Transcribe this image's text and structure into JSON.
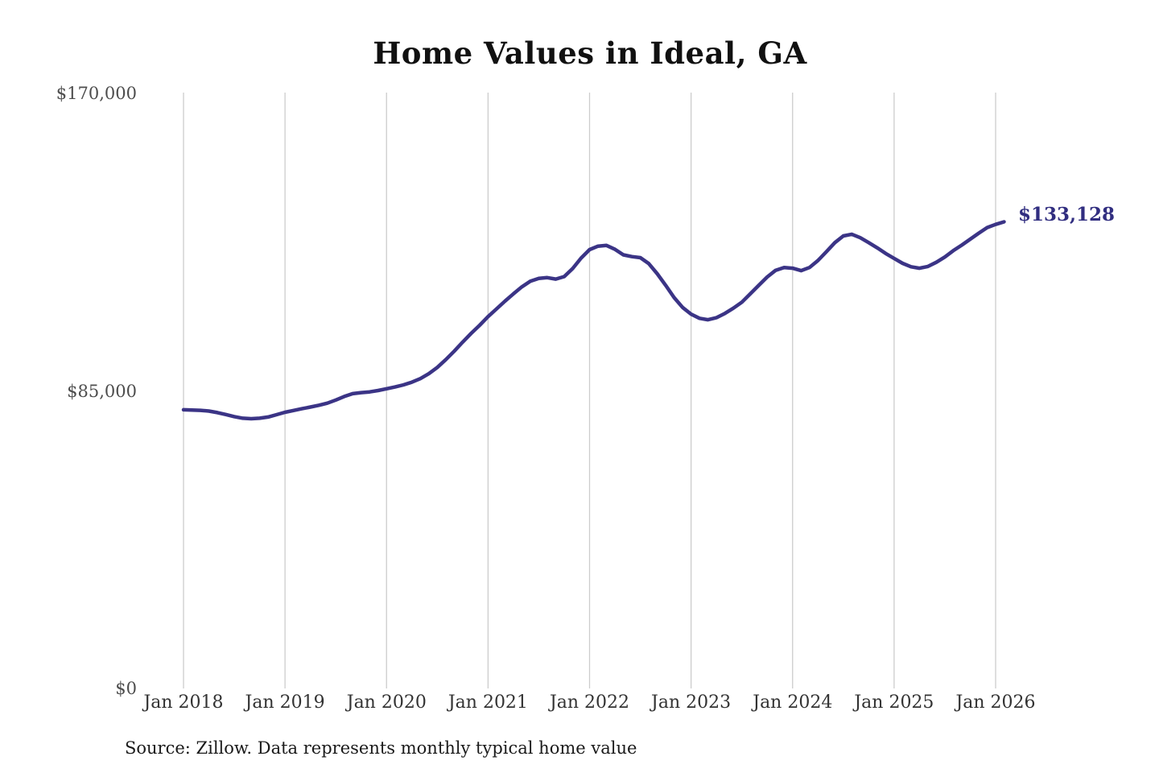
{
  "title": "Home Values in Ideal, GA",
  "annotation": {
    "latest_value_label": "$133,128"
  },
  "source_note": "Source: Zillow. Data represents monthly typical home value",
  "colors": {
    "line": "#3b3486",
    "annotation": "#312e80",
    "gridline": "#cccccc",
    "title": "#111111",
    "y_tick_label": "#4d4d4d",
    "x_tick_label": "#333333",
    "background": "#ffffff"
  },
  "chart_data": {
    "type": "line",
    "title": "Home Values in Ideal, GA",
    "xlabel": "",
    "ylabel": "",
    "y_axis_range": [
      0,
      170000
    ],
    "y_tick_labels": [
      "$170,000",
      "$85,000",
      "$0"
    ],
    "x_tick_labels": [
      "Jan 2018",
      "Jan 2019",
      "Jan 2020",
      "Jan 2021",
      "Jan 2022",
      "Jan 2023",
      "Jan 2024",
      "Jan 2025",
      "Jan 2026"
    ],
    "grid": "vertical-only",
    "legend": "none",
    "cadence": "monthly",
    "x_start": "2018-01",
    "x_end": "2026-02",
    "latest_value": 133128,
    "series": [
      {
        "name": "Typical home value",
        "values": [
          79500,
          79450,
          79350,
          79150,
          78700,
          78150,
          77550,
          77100,
          76950,
          77100,
          77450,
          78100,
          78800,
          79300,
          79800,
          80300,
          80800,
          81400,
          82300,
          83300,
          84100,
          84400,
          84600,
          85000,
          85500,
          86000,
          86600,
          87400,
          88400,
          89800,
          91600,
          93800,
          96200,
          98800,
          101300,
          103600,
          106100,
          108300,
          110500,
          112600,
          114600,
          116200,
          117000,
          117200,
          116800,
          117500,
          119800,
          122800,
          125200,
          126200,
          126400,
          125300,
          123700,
          123200,
          122900,
          121200,
          118300,
          115000,
          111500,
          108700,
          106800,
          105600,
          105200,
          105800,
          107000,
          108500,
          110200,
          112600,
          115000,
          117400,
          119300,
          120100,
          119900,
          119200,
          120100,
          122100,
          124600,
          127200,
          129100,
          129600,
          128600,
          127200,
          125700,
          124100,
          122700,
          121300,
          120300,
          119900,
          120400,
          121600,
          123100,
          124900,
          126500,
          128200,
          129900,
          131500,
          132400,
          133128
        ]
      }
    ]
  }
}
